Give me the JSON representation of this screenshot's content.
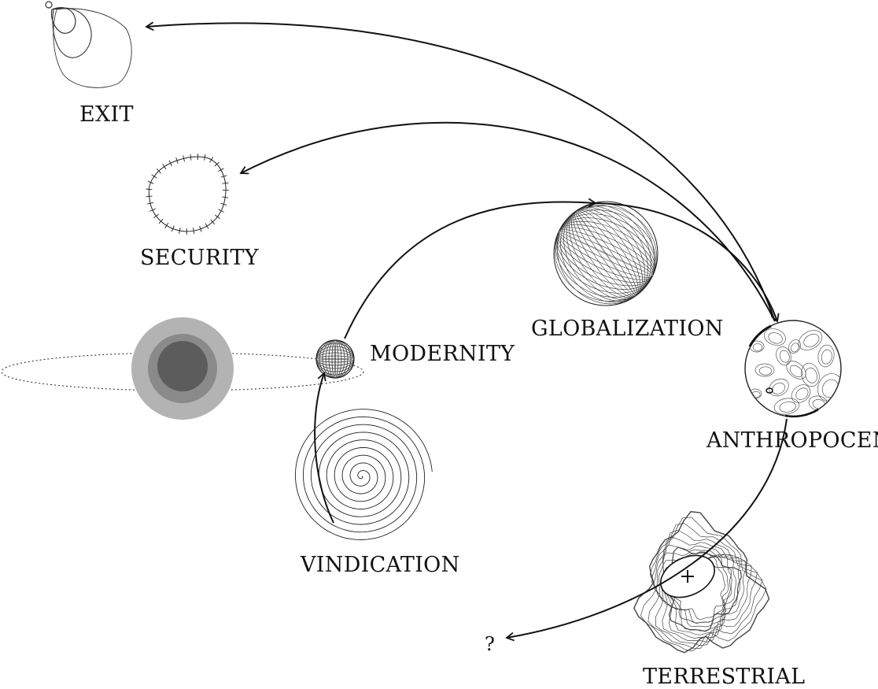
{
  "labels": {
    "exit": "EXIT",
    "security": "SECURITY",
    "modernity": "MODERNITY",
    "globalization": "GLOBALIZATION",
    "anthropocene": "ANTHROPOCENE",
    "vindication": "VINDICATION",
    "terrestrial": "TERRESTRIAL",
    "unknown": "?"
  },
  "icons": {
    "exit": "nested-loops-icon",
    "security": "stitched-ring-icon",
    "origin": "concentric-discs-icon",
    "modernity": "small-mesh-globe-icon",
    "globalization": "wireframe-globe-icon",
    "anthropocene": "blotched-sphere-icon",
    "vindication": "spiral-icon",
    "terrestrial": "contour-map-icon"
  },
  "colors": {
    "ink": "#111111",
    "disc_outer": "#b3b3b3",
    "disc_middle": "#8a8a8a",
    "disc_inner": "#5c5c5c"
  }
}
